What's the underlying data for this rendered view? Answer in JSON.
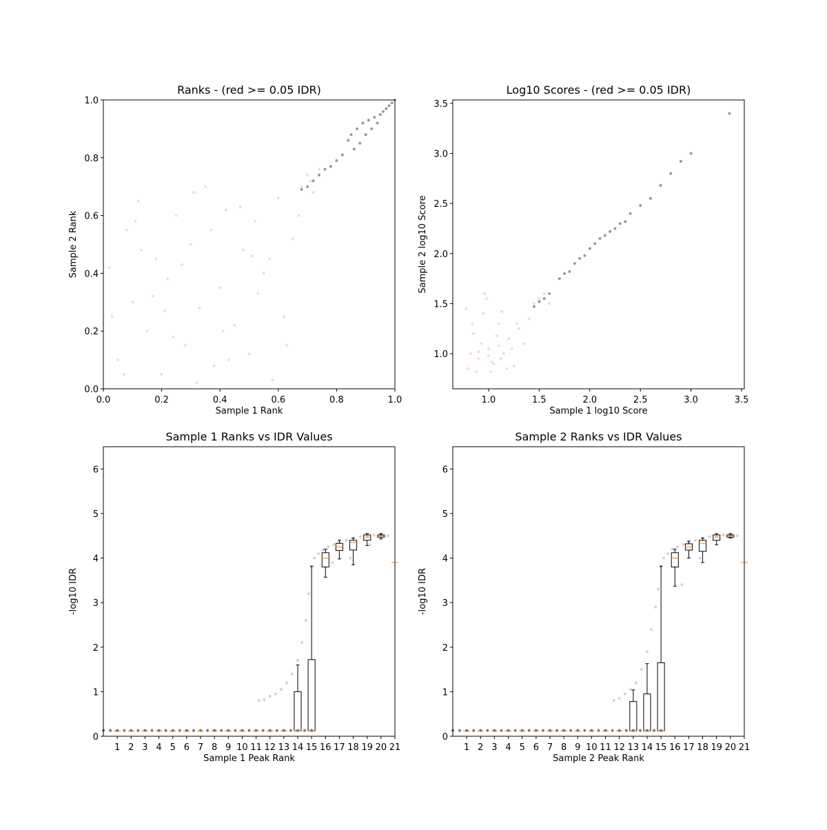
{
  "chart_data": [
    {
      "type": "scatter",
      "title": "Ranks - (red >= 0.05 IDR)",
      "xlabel": "Sample 1 Rank",
      "ylabel": "Sample 2 Rank",
      "xlim": [
        0,
        1
      ],
      "ylim": [
        0,
        1
      ],
      "xticks": [
        {
          "value": 0,
          "label": "0.0"
        },
        0.2,
        0.4,
        0.6,
        0.8,
        {
          "value": 1,
          "label": "1.0"
        }
      ],
      "yticks": [
        {
          "value": 0,
          "label": "0.0"
        },
        0.2,
        0.4,
        0.6,
        0.8,
        {
          "value": 1,
          "label": "1.0"
        }
      ],
      "series": [
        {
          "color": "#f08060",
          "alpha": 0.3,
          "x": [
            0.02,
            0.05,
            0.08,
            0.1,
            0.12,
            0.15,
            0.18,
            0.2,
            0.22,
            0.25,
            0.28,
            0.3,
            0.33,
            0.35,
            0.38,
            0.4,
            0.42,
            0.45,
            0.48,
            0.5,
            0.52,
            0.55,
            0.58,
            0.6,
            0.62,
            0.65,
            0.68,
            0.7,
            0.72,
            0.03,
            0.07,
            0.13,
            0.17,
            0.24,
            0.27,
            0.32,
            0.37,
            0.43,
            0.47,
            0.53,
            0.57,
            0.63,
            0.67,
            0.71,
            0.74,
            0.11,
            0.21,
            0.31,
            0.41,
            0.51
          ],
          "y": [
            0.42,
            0.1,
            0.55,
            0.3,
            0.65,
            0.2,
            0.45,
            0.05,
            0.38,
            0.6,
            0.15,
            0.5,
            0.28,
            0.7,
            0.08,
            0.35,
            0.62,
            0.22,
            0.48,
            0.12,
            0.58,
            0.4,
            0.03,
            0.66,
            0.25,
            0.52,
            0.7,
            0.74,
            0.68,
            0.25,
            0.05,
            0.48,
            0.32,
            0.18,
            0.43,
            0.02,
            0.55,
            0.1,
            0.63,
            0.33,
            0.45,
            0.15,
            0.6,
            0.72,
            0.76,
            0.58,
            0.27,
            0.68,
            0.2,
            0.46
          ]
        },
        {
          "color": "#333333",
          "alpha": 0.5,
          "x": [
            0.68,
            0.7,
            0.72,
            0.74,
            0.76,
            0.78,
            0.8,
            0.82,
            0.84,
            0.85,
            0.86,
            0.87,
            0.88,
            0.89,
            0.9,
            0.91,
            0.92,
            0.93,
            0.94,
            0.95,
            0.96,
            0.97,
            0.98,
            0.99,
            1.0
          ],
          "y": [
            0.69,
            0.7,
            0.72,
            0.74,
            0.76,
            0.77,
            0.79,
            0.81,
            0.86,
            0.88,
            0.83,
            0.9,
            0.85,
            0.92,
            0.88,
            0.93,
            0.9,
            0.94,
            0.92,
            0.95,
            0.96,
            0.97,
            0.98,
            0.99,
            1.0
          ]
        }
      ]
    },
    {
      "type": "scatter",
      "title": "Log10 Scores - (red >= 0.05 IDR)",
      "xlabel": "Sample 1 log10 Score",
      "ylabel": "Sample 2 log10 Score",
      "xlim": [
        0.646,
        3.527
      ],
      "ylim": [
        0.649,
        3.534
      ],
      "xticks": [
        {
          "value": 1,
          "label": "1.0"
        },
        1.5,
        {
          "value": 2,
          "label": "2.0"
        },
        2.5,
        {
          "value": 3,
          "label": "3.0"
        },
        3.5
      ],
      "yticks": [
        {
          "value": 1,
          "label": "1.0"
        },
        1.5,
        {
          "value": 2,
          "label": "2.0"
        },
        2.5,
        {
          "value": 3,
          "label": "3.0"
        },
        3.5
      ],
      "series": [
        {
          "color": "#f08060",
          "alpha": 0.3,
          "x": [
            0.8,
            0.85,
            0.9,
            0.95,
            1.0,
            1.05,
            1.1,
            1.15,
            1.2,
            1.25,
            1.3,
            1.35,
            1.4,
            1.45,
            0.82,
            0.88,
            0.93,
            0.98,
            1.03,
            1.08,
            1.13,
            1.18,
            1.23,
            1.28,
            0.78,
            0.84,
            0.96,
            1.02,
            1.12,
            1.5,
            1.55,
            1.6,
            0.9,
            1.0,
            1.1
          ],
          "y": [
            0.85,
            1.2,
            0.95,
            1.4,
            1.05,
            0.9,
            1.3,
            1.0,
            1.15,
            0.88,
            1.25,
            1.1,
            1.35,
            1.5,
            1.0,
            0.82,
            1.1,
            1.55,
            0.92,
            1.18,
            1.42,
            0.85,
            1.05,
            1.3,
            1.45,
            1.3,
            1.6,
            0.82,
            0.95,
            1.55,
            1.6,
            1.5,
            1.02,
            0.98,
            1.08
          ]
        },
        {
          "color": "#333333",
          "alpha": 0.5,
          "x": [
            1.45,
            1.5,
            1.55,
            1.6,
            1.7,
            1.75,
            1.8,
            1.85,
            1.9,
            1.95,
            2.0,
            2.05,
            2.1,
            2.15,
            2.2,
            2.25,
            2.3,
            2.35,
            2.4,
            2.5,
            2.6,
            2.7,
            2.8,
            2.9,
            3.0,
            3.38
          ],
          "y": [
            1.47,
            1.52,
            1.55,
            1.6,
            1.75,
            1.8,
            1.82,
            1.9,
            1.95,
            1.98,
            2.05,
            2.1,
            2.15,
            2.18,
            2.22,
            2.25,
            2.3,
            2.32,
            2.4,
            2.48,
            2.55,
            2.68,
            2.8,
            2.92,
            3.0,
            3.4
          ]
        }
      ]
    },
    {
      "type": "box",
      "title": "Sample 1 Ranks vs IDR Values",
      "xlabel": "Sample 1 Peak Rank",
      "ylabel": "-log10 IDR",
      "xlim": [
        0,
        21
      ],
      "ylim": [
        0,
        6.5
      ],
      "xticks": [
        1,
        2,
        3,
        4,
        5,
        6,
        7,
        8,
        9,
        10,
        11,
        12,
        13,
        14,
        15,
        16,
        17,
        18,
        19,
        20,
        21
      ],
      "yticks": [
        0,
        1,
        2,
        3,
        4,
        5,
        6
      ],
      "boxes": {
        "positions": [
          1,
          2,
          3,
          4,
          5,
          6,
          7,
          8,
          9,
          10,
          11,
          12,
          13,
          14,
          15,
          16,
          17,
          18,
          19,
          20,
          21
        ],
        "whislo": [
          0.12,
          0.12,
          0.12,
          0.12,
          0.12,
          0.12,
          0.12,
          0.12,
          0.12,
          0.12,
          0.12,
          0.12,
          0.12,
          0.12,
          0.12,
          3.57,
          3.98,
          3.85,
          4.28,
          4.43,
          3.9
        ],
        "q1": [
          0.12,
          0.12,
          0.12,
          0.12,
          0.12,
          0.12,
          0.12,
          0.12,
          0.12,
          0.12,
          0.12,
          0.12,
          0.12,
          0.12,
          0.12,
          3.8,
          4.17,
          4.18,
          4.4,
          4.47,
          3.9
        ],
        "med": [
          0.12,
          0.12,
          0.12,
          0.12,
          0.12,
          0.12,
          0.12,
          0.12,
          0.12,
          0.12,
          0.12,
          0.12,
          0.12,
          0.12,
          0.12,
          4.0,
          4.25,
          4.35,
          4.47,
          4.5,
          3.9
        ],
        "q3": [
          0.12,
          0.12,
          0.12,
          0.12,
          0.12,
          0.12,
          0.12,
          0.12,
          0.12,
          0.12,
          0.12,
          0.12,
          0.12,
          1.0,
          1.72,
          4.12,
          4.33,
          4.4,
          4.52,
          4.52,
          3.9
        ],
        "whishi": [
          0.12,
          0.12,
          0.12,
          0.12,
          0.12,
          0.12,
          0.12,
          0.12,
          0.12,
          0.12,
          0.12,
          0.12,
          0.12,
          1.6,
          3.82,
          4.2,
          4.4,
          4.45,
          4.55,
          4.55,
          3.9
        ]
      },
      "series": [
        {
          "color": "#222222",
          "alpha": 0.6,
          "x": [
            0,
            0.5,
            1,
            1.5,
            2,
            2.5,
            3,
            3.5,
            4,
            4.5,
            5,
            5.5,
            6,
            6.5,
            7,
            7.5,
            8,
            8.5,
            9,
            9.5,
            10,
            10.5,
            11,
            11.5,
            12,
            12.5,
            13,
            13.5,
            14,
            14.5,
            15
          ],
          "y": [
            0.13,
            0.13,
            0.13,
            0.13,
            0.13,
            0.13,
            0.13,
            0.13,
            0.13,
            0.13,
            0.13,
            0.13,
            0.13,
            0.13,
            0.13,
            0.13,
            0.13,
            0.13,
            0.13,
            0.13,
            0.13,
            0.13,
            0.13,
            0.13,
            0.13,
            0.13,
            0.13,
            0.13,
            0.13,
            0.13,
            0.13
          ]
        },
        {
          "color": "#808080",
          "alpha": 0.35,
          "x": [
            11.2,
            11.6,
            12,
            12.4,
            12.8,
            13.2,
            13.6,
            14,
            14.3,
            14.6,
            14.8,
            15,
            15.2,
            15.5,
            15.8,
            16.2,
            16.6,
            17,
            17.5,
            18,
            18.5,
            19,
            19.5,
            20,
            20.5,
            16.5,
            17.8,
            19.2
          ],
          "y": [
            0.8,
            0.82,
            0.9,
            0.95,
            1.05,
            1.2,
            1.4,
            1.7,
            2.1,
            2.6,
            3.2,
            3.8,
            4.0,
            4.1,
            4.18,
            4.25,
            4.3,
            4.35,
            4.4,
            4.45,
            4.48,
            4.5,
            4.52,
            4.53,
            4.5,
            3.9,
            4.0,
            4.3
          ]
        }
      ]
    },
    {
      "type": "box",
      "title": "Sample 2 Ranks vs IDR Values",
      "xlabel": "Sample 2 Peak Rank",
      "ylabel": "-log10 IDR",
      "xlim": [
        0,
        21
      ],
      "ylim": [
        0,
        6.5
      ],
      "xticks": [
        1,
        2,
        3,
        4,
        5,
        6,
        7,
        8,
        9,
        10,
        11,
        12,
        13,
        14,
        15,
        16,
        17,
        18,
        19,
        20,
        21
      ],
      "yticks": [
        0,
        1,
        2,
        3,
        4,
        5,
        6
      ],
      "boxes": {
        "positions": [
          1,
          2,
          3,
          4,
          5,
          6,
          7,
          8,
          9,
          10,
          11,
          12,
          13,
          14,
          15,
          16,
          17,
          18,
          19,
          20,
          21
        ],
        "whislo": [
          0.12,
          0.12,
          0.12,
          0.12,
          0.12,
          0.12,
          0.12,
          0.12,
          0.12,
          0.12,
          0.12,
          0.12,
          0.12,
          0.12,
          0.12,
          3.37,
          4.0,
          3.9,
          4.3,
          4.45,
          3.9
        ],
        "q1": [
          0.12,
          0.12,
          0.12,
          0.12,
          0.12,
          0.12,
          0.12,
          0.12,
          0.12,
          0.12,
          0.12,
          0.12,
          0.12,
          0.12,
          0.12,
          3.8,
          4.18,
          4.15,
          4.4,
          4.47,
          3.9
        ],
        "med": [
          0.12,
          0.12,
          0.12,
          0.12,
          0.12,
          0.12,
          0.12,
          0.12,
          0.12,
          0.12,
          0.12,
          0.12,
          0.12,
          0.12,
          0.12,
          4.0,
          4.25,
          4.33,
          4.47,
          4.5,
          3.9
        ],
        "q3": [
          0.12,
          0.12,
          0.12,
          0.12,
          0.12,
          0.12,
          0.12,
          0.12,
          0.12,
          0.12,
          0.12,
          0.12,
          0.78,
          0.95,
          1.65,
          4.12,
          4.32,
          4.4,
          4.52,
          4.52,
          3.9
        ],
        "whishi": [
          0.12,
          0.12,
          0.12,
          0.12,
          0.12,
          0.12,
          0.12,
          0.12,
          0.12,
          0.12,
          0.12,
          0.12,
          1.04,
          1.63,
          3.82,
          4.2,
          4.38,
          4.45,
          4.55,
          4.55,
          3.9
        ]
      },
      "series": [
        {
          "color": "#222222",
          "alpha": 0.6,
          "x": [
            0,
            0.5,
            1,
            1.5,
            2,
            2.5,
            3,
            3.5,
            4,
            4.5,
            5,
            5.5,
            6,
            6.5,
            7,
            7.5,
            8,
            8.5,
            9,
            9.5,
            10,
            10.5,
            11,
            11.5,
            12,
            12.5,
            13,
            13.5,
            14,
            14.5,
            15
          ],
          "y": [
            0.13,
            0.13,
            0.13,
            0.13,
            0.13,
            0.13,
            0.13,
            0.13,
            0.13,
            0.13,
            0.13,
            0.13,
            0.13,
            0.13,
            0.13,
            0.13,
            0.13,
            0.13,
            0.13,
            0.13,
            0.13,
            0.13,
            0.13,
            0.13,
            0.13,
            0.13,
            0.13,
            0.13,
            0.13,
            0.13,
            0.13
          ]
        },
        {
          "color": "#808080",
          "alpha": 0.35,
          "x": [
            11.6,
            12,
            12.4,
            12.8,
            13.2,
            13.6,
            14,
            14.3,
            14.6,
            14.8,
            15,
            15.2,
            15.5,
            15.8,
            16.2,
            16.6,
            17,
            17.5,
            18,
            18.5,
            19,
            19.5,
            20,
            20.5,
            16.5,
            17.8
          ],
          "y": [
            0.8,
            0.85,
            0.95,
            1.05,
            1.2,
            1.5,
            1.9,
            2.4,
            2.9,
            3.3,
            3.8,
            4.0,
            4.1,
            4.2,
            4.25,
            4.3,
            4.35,
            4.4,
            4.45,
            4.48,
            4.5,
            4.52,
            4.53,
            4.5,
            3.4,
            4.0
          ]
        }
      ]
    }
  ]
}
